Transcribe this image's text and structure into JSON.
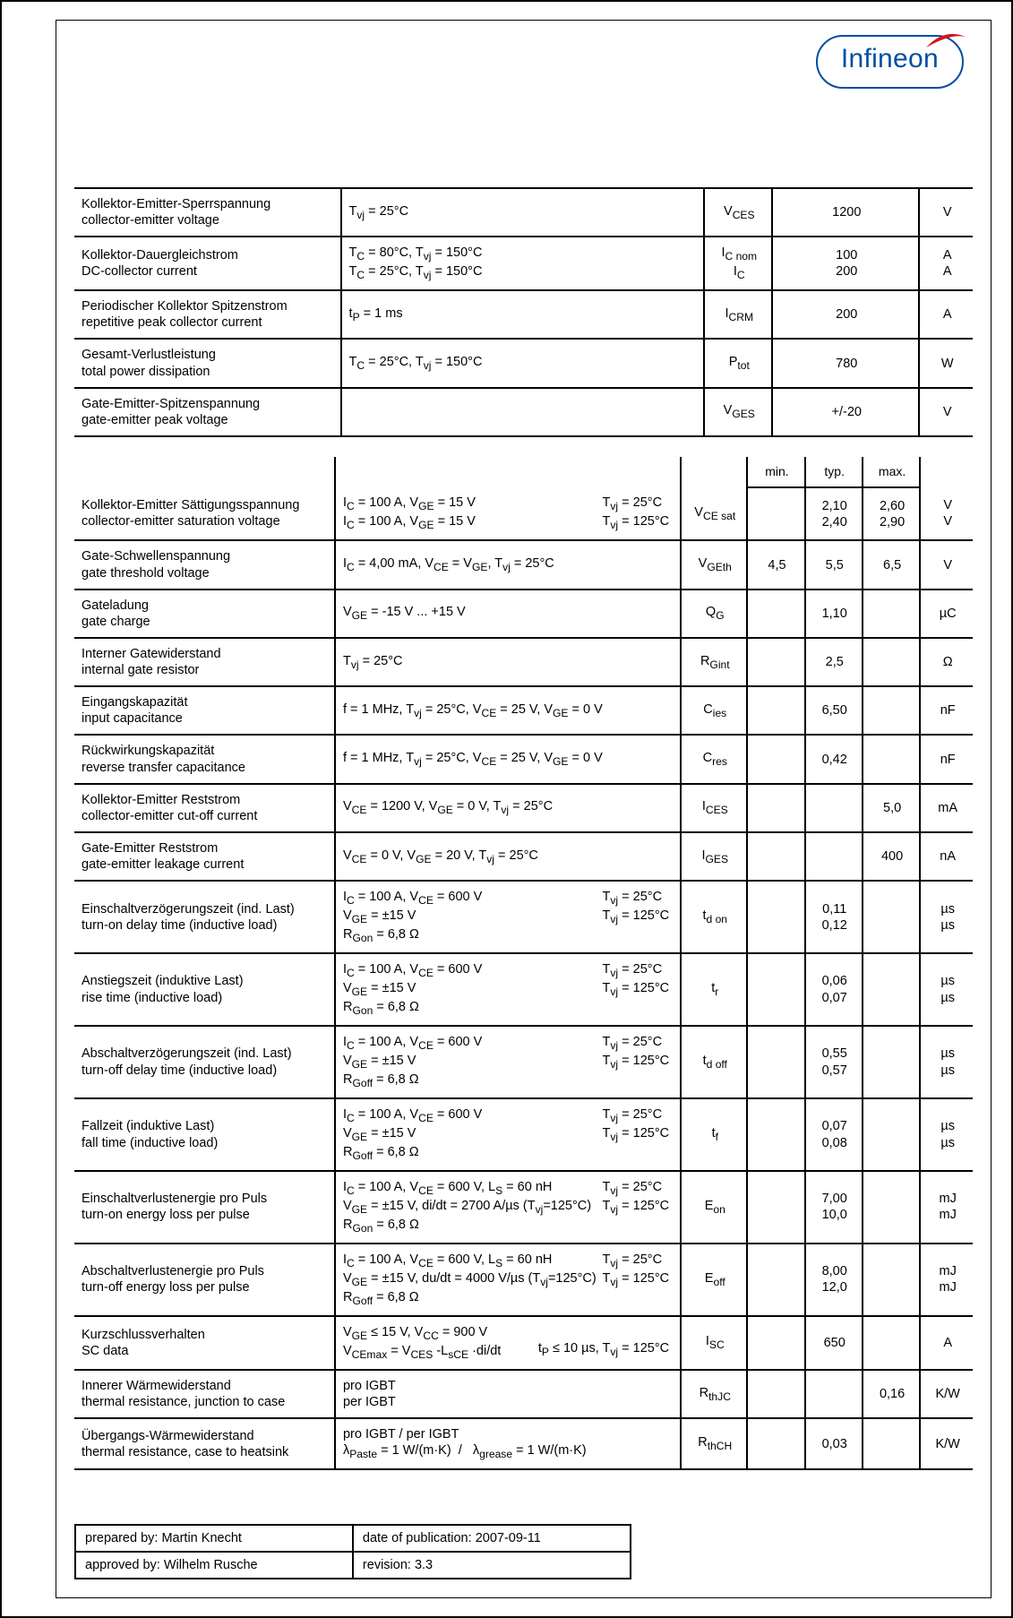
{
  "brand": {
    "name": "Infineon",
    "color": "#014ea2",
    "swoosh_color": "#d5161d"
  },
  "table1": {
    "rows": [
      {
        "label_de": "Kollektor-Emitter-Sperrspannung",
        "label_en": "collector-emitter voltage",
        "cond": "T<sub>vj</sub> = 25°C",
        "sym": "V<sub>CES</sub>",
        "val": "1200",
        "unit": "V"
      },
      {
        "label_de": "Kollektor-Dauergleichstrom",
        "label_en": "DC-collector current",
        "cond": "T<sub>C</sub> = 80°C, T<sub>vj</sub> = 150°C<br>T<sub>C</sub> = 25°C, T<sub>vj</sub> = 150°C",
        "sym": "I<sub>C nom</sub><br>I<sub>C</sub>",
        "val": "100<br>200",
        "unit": "A<br>A"
      },
      {
        "label_de": "Periodischer Kollektor Spitzenstrom",
        "label_en": "repetitive peak collector current",
        "cond": "t<sub>P</sub> = 1 ms",
        "sym": "I<sub>CRM</sub>",
        "val": "200",
        "unit": "A"
      },
      {
        "label_de": "Gesamt-Verlustleistung",
        "label_en": "total power dissipation",
        "cond": "T<sub>C</sub> = 25°C, T<sub>vj</sub> = 150°C",
        "sym": "P<sub>tot</sub>",
        "val": "780",
        "unit": "W"
      },
      {
        "label_de": "Gate-Emitter-Spitzenspannung",
        "label_en": "gate-emitter peak voltage",
        "cond": "",
        "sym": "V<sub>GES</sub>",
        "val": "+/-20",
        "unit": "V"
      }
    ]
  },
  "table2": {
    "header": {
      "min": "min.",
      "typ": "typ.",
      "max": "max."
    },
    "rows": [
      {
        "label_de": "Kollektor-Emitter Sättigungsspannung",
        "label_en": "collector-emitter saturation voltage",
        "cond_left": "I<sub>C</sub> = 100 A, V<sub>GE</sub> = 15 V<br>I<sub>C</sub> = 100 A, V<sub>GE</sub> = 15 V",
        "cond_right": "T<sub>vj</sub> = 25°C<br>T<sub>vj</sub> = 125°C",
        "sym": "V<sub>CE sat</sub>",
        "min": "",
        "typ": "2,10<br>2,40",
        "max": "2,60<br>2,90",
        "unit": "V<br>V"
      },
      {
        "label_de": "Gate-Schwellenspannung",
        "label_en": "gate threshold voltage",
        "cond_left": "I<sub>C</sub> = 4,00 mA, V<sub>CE</sub> = V<sub>GE</sub>, T<sub>vj</sub> = 25°C",
        "cond_right": "",
        "sym": "V<sub>GEth</sub>",
        "min": "4,5",
        "typ": "5,5",
        "max": "6,5",
        "unit": "V"
      },
      {
        "label_de": "Gateladung",
        "label_en": "gate charge",
        "cond_left": "V<sub>GE</sub> = -15 V ... +15 V",
        "cond_right": "",
        "sym": "Q<sub>G</sub>",
        "min": "",
        "typ": "1,10",
        "max": "",
        "unit": "µC"
      },
      {
        "label_de": "Interner Gatewiderstand",
        "label_en": "internal gate resistor",
        "cond_left": "T<sub>vj</sub> = 25°C",
        "cond_right": "",
        "sym": "R<sub>Gint</sub>",
        "min": "",
        "typ": "2,5",
        "max": "",
        "unit": "Ω"
      },
      {
        "label_de": "Eingangskapazität",
        "label_en": "input capacitance",
        "cond_left": "f = 1 MHz, T<sub>vj</sub> = 25°C, V<sub>CE</sub> = 25 V, V<sub>GE</sub> = 0 V",
        "cond_right": "",
        "sym": "C<sub>ies</sub>",
        "min": "",
        "typ": "6,50",
        "max": "",
        "unit": "nF"
      },
      {
        "label_de": "Rückwirkungskapazität",
        "label_en": "reverse transfer capacitance",
        "cond_left": "f = 1 MHz, T<sub>vj</sub> = 25°C, V<sub>CE</sub> = 25 V, V<sub>GE</sub> = 0 V",
        "cond_right": "",
        "sym": "C<sub>res</sub>",
        "min": "",
        "typ": "0,42",
        "max": "",
        "unit": "nF"
      },
      {
        "label_de": "Kollektor-Emitter Reststrom",
        "label_en": "collector-emitter cut-off current",
        "cond_left": "V<sub>CE</sub> = 1200 V, V<sub>GE</sub> = 0 V, T<sub>vj</sub> = 25°C",
        "cond_right": "",
        "sym": "I<sub>CES</sub>",
        "min": "",
        "typ": "",
        "max": "5,0",
        "unit": "mA"
      },
      {
        "label_de": "Gate-Emitter Reststrom",
        "label_en": "gate-emitter leakage current",
        "cond_left": "V<sub>CE</sub> = 0 V, V<sub>GE</sub> = 20 V, T<sub>vj</sub> = 25°C",
        "cond_right": "",
        "sym": "I<sub>GES</sub>",
        "min": "",
        "typ": "",
        "max": "400",
        "unit": "nA"
      },
      {
        "label_de": "Einschaltverzögerungszeit (ind. Last)",
        "label_en": "turn-on delay time (inductive load)",
        "cond_left": "I<sub>C</sub> = 100 A, V<sub>CE</sub> = 600 V<br>V<sub>GE</sub> = ±15 V<br>R<sub>Gon</sub> = 6,8 Ω",
        "cond_right": "T<sub>vj</sub> = 25°C<br>T<sub>vj</sub> = 125°C",
        "sym": "t<sub>d on</sub>",
        "min": "",
        "typ": "0,11<br>0,12",
        "max": "",
        "unit": "µs<br>µs"
      },
      {
        "label_de": "Anstiegszeit (induktive Last)",
        "label_en": "rise time (inductive load)",
        "cond_left": "I<sub>C</sub> = 100 A, V<sub>CE</sub> = 600 V<br>V<sub>GE</sub> = ±15 V<br>R<sub>Gon</sub> = 6,8 Ω",
        "cond_right": "T<sub>vj</sub> = 25°C<br>T<sub>vj</sub> = 125°C",
        "sym": "t<sub>r</sub>",
        "min": "",
        "typ": "0,06<br>0,07",
        "max": "",
        "unit": "µs<br>µs"
      },
      {
        "label_de": "Abschaltverzögerungszeit (ind. Last)",
        "label_en": "turn-off delay time (inductive load)",
        "cond_left": "I<sub>C</sub> = 100 A, V<sub>CE</sub> = 600 V<br>V<sub>GE</sub> = ±15 V<br>R<sub>Goff</sub> = 6,8 Ω",
        "cond_right": "T<sub>vj</sub> = 25°C<br>T<sub>vj</sub> = 125°C",
        "sym": "t<sub>d off</sub>",
        "min": "",
        "typ": "0,55<br>0,57",
        "max": "",
        "unit": "µs<br>µs"
      },
      {
        "label_de": "Fallzeit (induktive Last)",
        "label_en": "fall time (inductive load)",
        "cond_left": "I<sub>C</sub> = 100 A, V<sub>CE</sub> = 600 V<br>V<sub>GE</sub> = ±15 V<br>R<sub>Goff</sub> = 6,8 Ω",
        "cond_right": "T<sub>vj</sub> = 25°C<br>T<sub>vj</sub> = 125°C",
        "sym": "t<sub>f</sub>",
        "min": "",
        "typ": "0,07<br>0,08",
        "max": "",
        "unit": "µs<br>µs"
      },
      {
        "label_de": "Einschaltverlustenergie pro Puls",
        "label_en": "turn-on energy loss per pulse",
        "cond_left": "I<sub>C</sub> = 100 A, V<sub>CE</sub> = 600 V, L<sub>S</sub> = 60 nH<br>V<sub>GE</sub> = ±15 V, di/dt = 2700 A/µs (T<sub>vj</sub>=125°C)<br>R<sub>Gon</sub> = 6,8 Ω",
        "cond_right": "T<sub>vj</sub> = 25°C<br>T<sub>vj</sub> = 125°C",
        "sym": "E<sub>on</sub>",
        "min": "",
        "typ": "7,00<br>10,0",
        "max": "",
        "unit": "mJ<br>mJ"
      },
      {
        "label_de": "Abschaltverlustenergie pro Puls",
        "label_en": "turn-off energy loss per pulse",
        "cond_left": "I<sub>C</sub> = 100 A, V<sub>CE</sub> = 600 V, L<sub>S</sub> = 60 nH<br>V<sub>GE</sub> = ±15 V, du/dt = 4000 V/µs (T<sub>vj</sub>=125°C)<br>R<sub>Goff</sub> = 6,8 Ω",
        "cond_right": "T<sub>vj</sub> = 25°C<br>T<sub>vj</sub> = 125°C",
        "sym": "E<sub>off</sub>",
        "min": "",
        "typ": "8,00<br>12,0",
        "max": "",
        "unit": "mJ<br>mJ"
      },
      {
        "label_de": "Kurzschlussverhalten",
        "label_en": "SC data",
        "cond_left": "V<sub>GE</sub> ≤ 15 V, V<sub>CC</sub> = 900 V<br>V<sub>CEmax</sub> = V<sub>CES</sub> -L<sub>sCE</sub> ·di/dt",
        "cond_right": "<br>t<sub>P</sub> ≤ 10 µs, T<sub>vj</sub> = 125°C",
        "sym": "I<sub>SC</sub>",
        "min": "",
        "typ": "650",
        "max": "",
        "unit": "A"
      },
      {
        "label_de": "Innerer Wärmewiderstand",
        "label_en": "thermal resistance, junction to case",
        "cond_left": "pro IGBT<br>per IGBT",
        "cond_right": "",
        "sym": "R<sub>thJC</sub>",
        "min": "",
        "typ": "",
        "max": "0,16",
        "unit": "K/W"
      },
      {
        "label_de": "Übergangs-Wärmewiderstand",
        "label_en": "thermal resistance, case to heatsink",
        "cond_left": "pro IGBT / per IGBT<br>λ<sub>Paste</sub>&nbsp;= 1 W/(m·K)&nbsp;&nbsp;/&nbsp;&nbsp; λ<sub>grease</sub>&nbsp;= 1 W/(m·K)",
        "cond_right": "",
        "sym": "R<sub>thCH</sub>",
        "min": "",
        "typ": "0,03",
        "max": "",
        "unit": "K/W"
      }
    ]
  },
  "footer": {
    "prepared_by_label": "prepared by:",
    "prepared_by": "Martin Knecht",
    "date_label": "date of publication:",
    "date": "2007-09-11",
    "approved_by_label": "approved by:",
    "approved_by": "Wilhelm Rusche",
    "rev_label": "revision:",
    "rev": "3.3"
  }
}
